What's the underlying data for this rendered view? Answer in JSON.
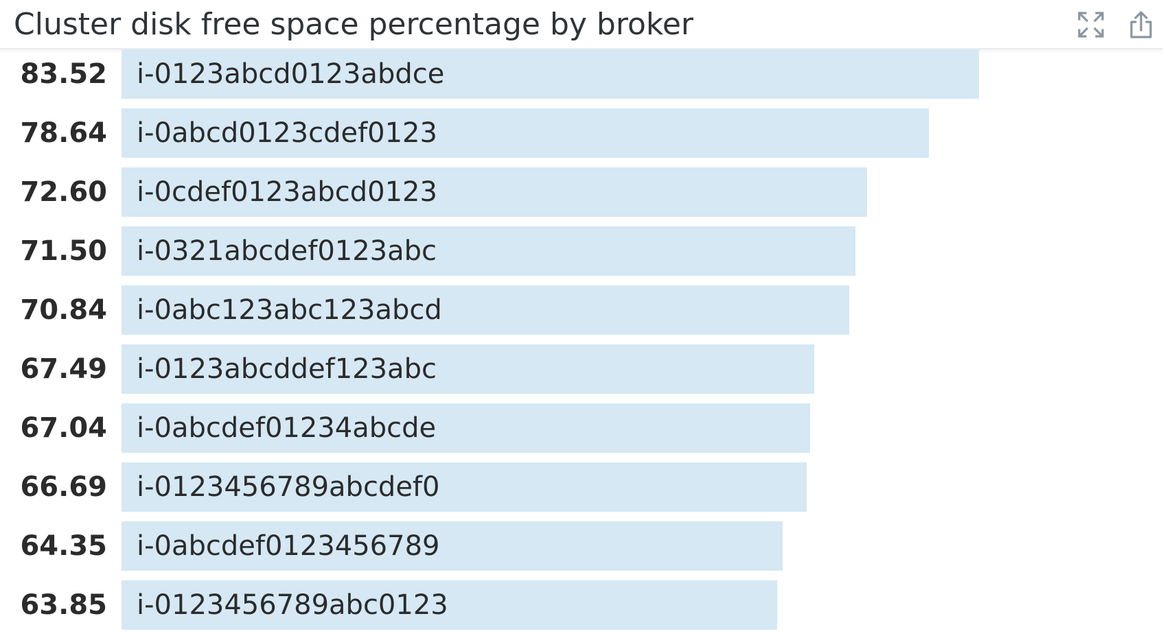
{
  "widget": {
    "title": "Cluster disk free space percentage by broker",
    "icons": {
      "expand": "expand-icon",
      "share": "share-icon"
    }
  },
  "colors": {
    "bar_fill": "#d5e8f4",
    "text": "#2b2b2b",
    "icon": "#8a96a0"
  },
  "chart_data": {
    "type": "bar",
    "orientation": "horizontal",
    "title": "Cluster disk free space percentage by broker",
    "xlim": [
      0,
      94
    ],
    "categories": [
      "i-0123abcd0123abdce",
      "i-0abcd0123cdef0123",
      "i-0cdef0123abcd0123",
      "i-0321abcdef0123abc",
      "i-0abc123abc123abcd",
      "i-0123abcddef123abc",
      "i-0abcdef01234abcde",
      "i-0123456789abcdef0",
      "i-0abcdef0123456789",
      "i-0123456789abc0123"
    ],
    "values": [
      "83.52",
      "78.64",
      "72.60",
      "71.50",
      "70.84",
      "67.49",
      "67.04",
      "66.69",
      "64.35",
      "63.85"
    ]
  }
}
